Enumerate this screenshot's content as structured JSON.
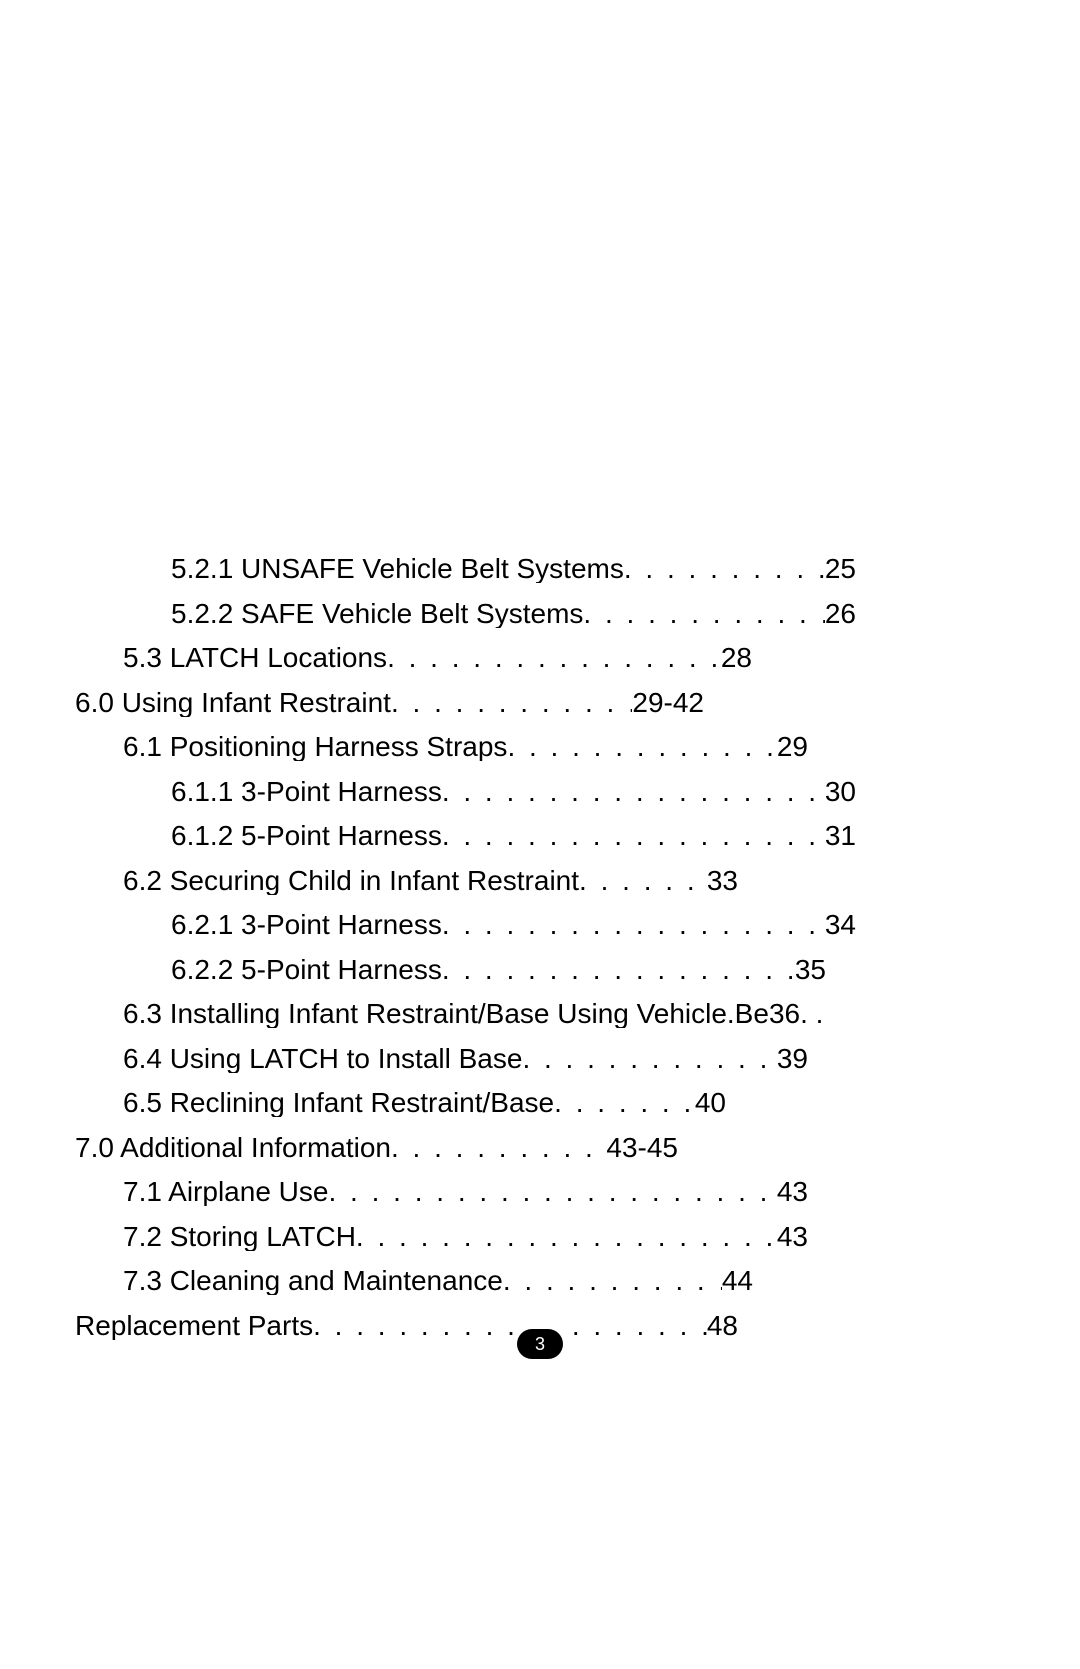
{
  "page_number": "3",
  "text_color": "#000000",
  "background_color": "#ffffff",
  "font_size_pt": 21,
  "entries": [
    {
      "indent": 2,
      "label": "5.2.1 UNSAFE Vehicle Belt Systems",
      "page": "25",
      "stop": "stop-a"
    },
    {
      "indent": 2,
      "label": "5.2.2 SAFE Vehicle Belt Systems",
      "page": "26",
      "stop": "stop-a"
    },
    {
      "indent": 1,
      "label": "5.3 LATCH Locations",
      "page": "28",
      "stop": "stop-b"
    },
    {
      "indent": 0,
      "label": "6.0  Using Infant Restraint",
      "page": "29-42",
      "stop": "stop-b"
    },
    {
      "indent": 1,
      "label": "6.1  Positioning Harness Straps",
      "page": "29",
      "stop": "stop-a"
    },
    {
      "indent": 2,
      "label": "6.1.1  3-Point Harness",
      "page": "30",
      "stop": "stop-a"
    },
    {
      "indent": 2,
      "label": "6.1.2  5-Point Harness",
      "page": "31",
      "stop": "stop-a"
    },
    {
      "indent": 1,
      "label": "6.2  Securing Child in Infant Restraint",
      "page": "33",
      "stop": "stop-c"
    },
    {
      "indent": 2,
      "label": "6.2.1  3-Point Harness",
      "page": "34",
      "stop": "stop-a"
    },
    {
      "indent": 2,
      "label": "6.2.2  5-Point Harness",
      "page": "35",
      "stop": "stop-e"
    },
    {
      "indent": 1,
      "label": "6.3  Installing Infant Restraint/Base Using Vehicle Belt",
      "page": "36",
      "stop": "row63"
    },
    {
      "indent": 1,
      "label": "6.4  Using LATCH to Install Base",
      "page": "39",
      "stop": "stop-a"
    },
    {
      "indent": 1,
      "label": "6.5  Reclining Infant Restraint/Base",
      "page": "40",
      "stop": "stop-d"
    },
    {
      "indent": 0,
      "label": "7.0  Additional Information",
      "page": "43-45",
      "stop": "stop-d"
    },
    {
      "indent": 1,
      "label": "7.1  Airplane Use",
      "page": "43",
      "stop": "stop-a"
    },
    {
      "indent": 1,
      "label": "7.2  Storing LATCH",
      "page": "43",
      "stop": "stop-a"
    },
    {
      "indent": 1,
      "label": "7.3  Cleaning and Maintenance",
      "page": "44",
      "stop": "stop-f"
    },
    {
      "indent": 0,
      "label": "Replacement Parts",
      "page": "48",
      "stop": "stop-g"
    }
  ]
}
